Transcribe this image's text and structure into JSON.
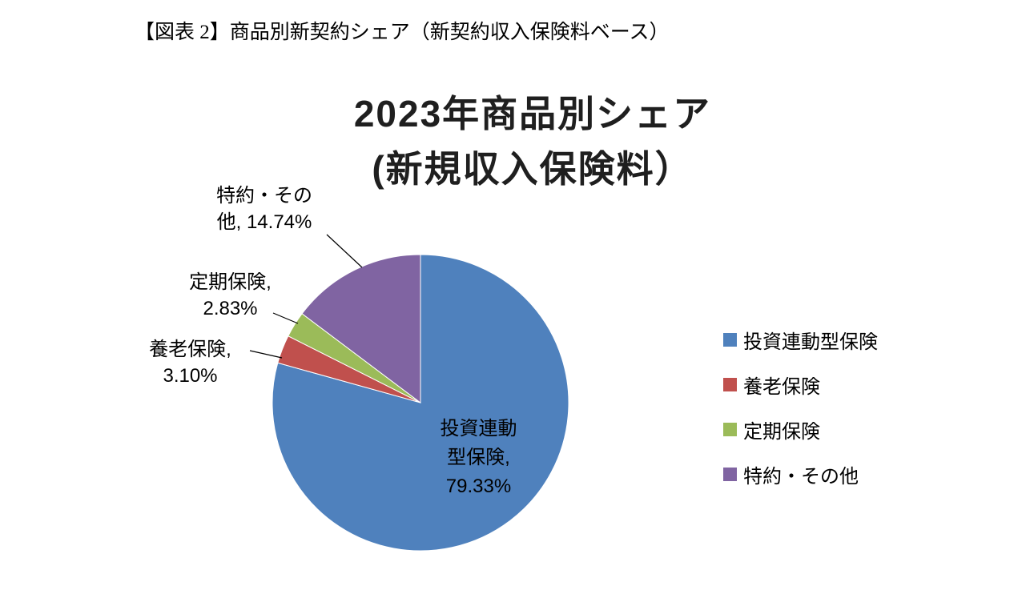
{
  "caption": "【図表 2】商品別新契約シェア（新契約収入保険料ベース）",
  "title": {
    "line1": "2023年商品別シェア",
    "line2": "(新規収入保険料）"
  },
  "chart_data": {
    "type": "pie",
    "title": "2023年商品別シェア (新規収入保険料）",
    "labels": [
      "投資連動型保険",
      "養老保険",
      "定期保険",
      "特約・その他"
    ],
    "values": [
      79.33,
      3.1,
      2.83,
      14.74
    ],
    "colors": [
      "#4F81BD",
      "#C0504D",
      "#9BBB59",
      "#8064A2"
    ],
    "start_angle_deg": -90,
    "direction": "clockwise",
    "legend_position": "right",
    "data_labels": {
      "invest": {
        "line1": "投資連動",
        "line2": "型保険,",
        "line3": "79.33%"
      },
      "endowment": {
        "line1": "養老保険,",
        "line2": "3.10%"
      },
      "term": {
        "line1": "定期保険,",
        "line2": "2.83%"
      },
      "rider": {
        "line1": "特約・その",
        "line2": "他, 14.74%"
      }
    }
  }
}
